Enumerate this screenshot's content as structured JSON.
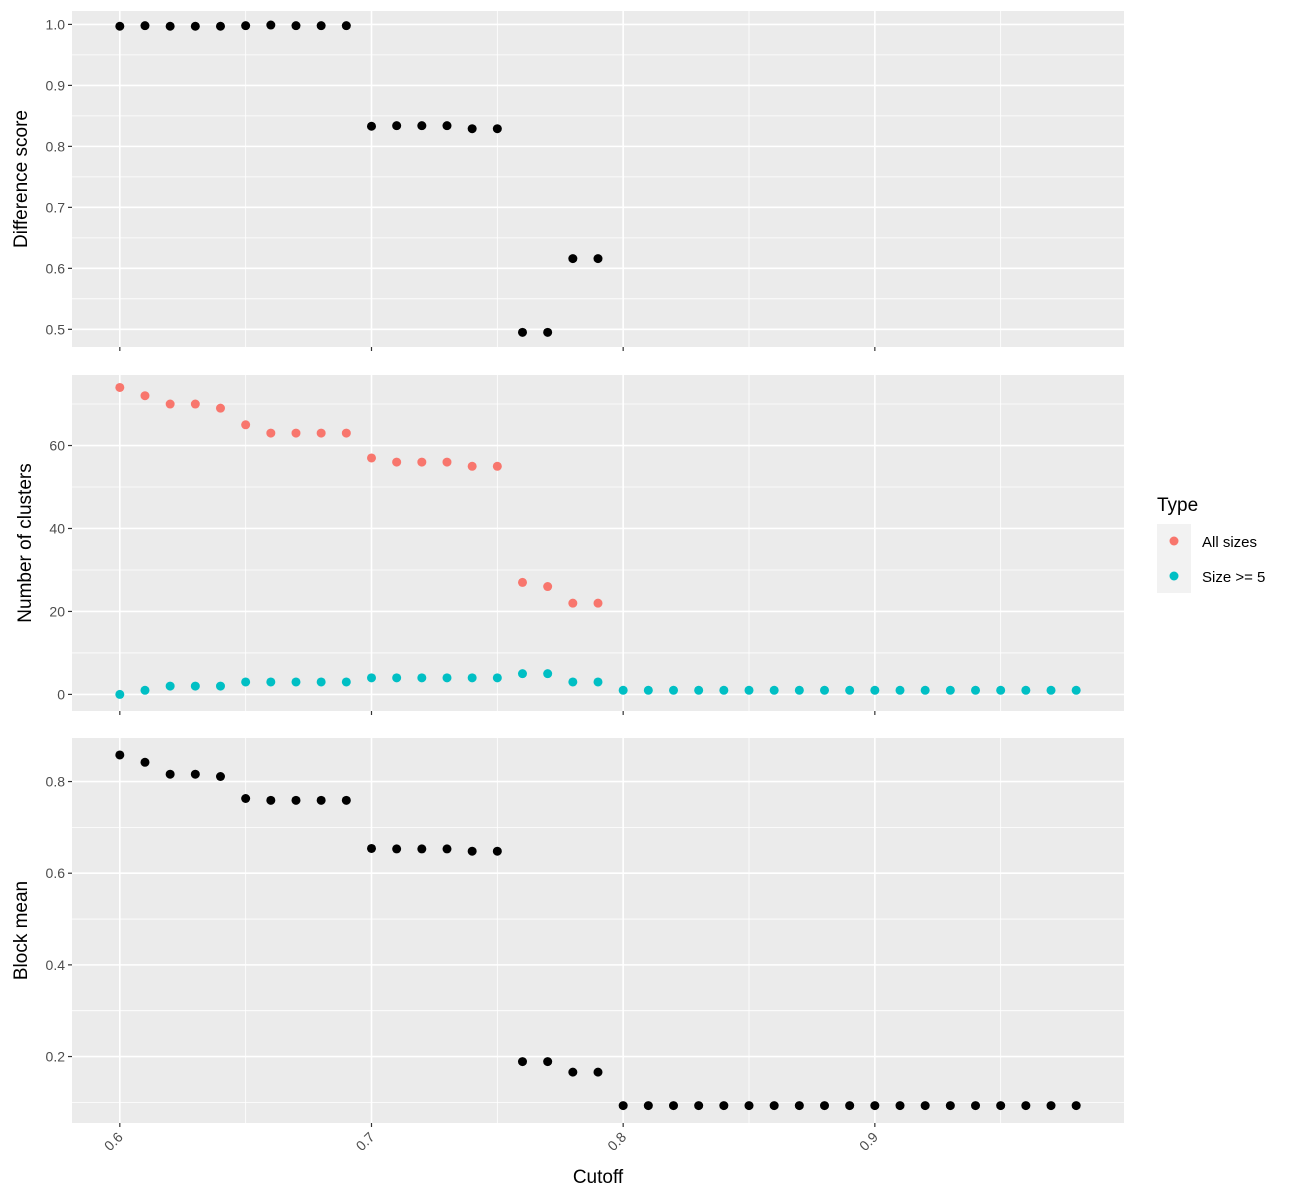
{
  "chart_data": {
    "type": "scatter",
    "layout": "faceted-vertical",
    "shared_x_label": "Cutoff",
    "x_ticks": [
      0.6,
      0.7,
      0.8,
      0.9
    ],
    "x_tick_labels": [
      "0.6",
      "0.7",
      "0.8",
      "0.9"
    ],
    "xlim": [
      0.581,
      0.999
    ],
    "grid": true,
    "colors": {
      "panel_background": "#ebebeb",
      "grid": "#ffffff",
      "point_default": "#000000",
      "tick_mark": "#333333"
    },
    "legend": {
      "title": "Type",
      "placement": "right",
      "entries": [
        {
          "label": "All sizes",
          "color": "#f8766d"
        },
        {
          "label": "Size >= 5",
          "color": "#00bfc4"
        }
      ]
    },
    "panels": [
      {
        "ylabel": "Difference score",
        "ylim": [
          0.471,
          1.022
        ],
        "y_ticks": [
          0.5,
          0.6,
          0.7,
          0.8,
          0.9,
          1.0
        ],
        "y_tick_labels": [
          "0.5",
          "0.6",
          "0.7",
          "0.8",
          "0.9",
          "1.0"
        ],
        "series": [
          {
            "color": "#000000",
            "x": [
              0.6,
              0.61,
              0.62,
              0.63,
              0.64,
              0.65,
              0.66,
              0.67,
              0.68,
              0.69,
              0.7,
              0.71,
              0.72,
              0.73,
              0.74,
              0.75,
              0.76,
              0.77,
              0.78,
              0.79
            ],
            "y": [
              0.997,
              0.998,
              0.997,
              0.997,
              0.997,
              0.998,
              0.999,
              0.998,
              0.998,
              0.998,
              0.833,
              0.834,
              0.834,
              0.834,
              0.829,
              0.829,
              0.495,
              0.495,
              0.616,
              0.616
            ]
          }
        ]
      },
      {
        "ylabel": "Number of clusters",
        "ylim": [
          -4,
          77
        ],
        "y_ticks": [
          0,
          20,
          40,
          60
        ],
        "y_tick_labels": [
          "0",
          "20",
          "40",
          "60"
        ],
        "series": [
          {
            "name": "All sizes",
            "color": "#f8766d",
            "x": [
              0.6,
              0.61,
              0.62,
              0.63,
              0.64,
              0.65,
              0.66,
              0.67,
              0.68,
              0.69,
              0.7,
              0.71,
              0.72,
              0.73,
              0.74,
              0.75,
              0.76,
              0.77,
              0.78,
              0.79
            ],
            "y": [
              74,
              72,
              70,
              70,
              69,
              65,
              63,
              63,
              63,
              63,
              57,
              56,
              56,
              56,
              55,
              55,
              27,
              26,
              22,
              22
            ]
          },
          {
            "name": "Size >= 5",
            "color": "#00bfc4",
            "x": [
              0.6,
              0.61,
              0.62,
              0.63,
              0.64,
              0.65,
              0.66,
              0.67,
              0.68,
              0.69,
              0.7,
              0.71,
              0.72,
              0.73,
              0.74,
              0.75,
              0.76,
              0.77,
              0.78,
              0.79,
              0.8,
              0.81,
              0.82,
              0.83,
              0.84,
              0.85,
              0.86,
              0.87,
              0.88,
              0.89,
              0.9,
              0.91,
              0.92,
              0.93,
              0.94,
              0.95,
              0.96,
              0.97,
              0.98
            ],
            "y": [
              0,
              1,
              2,
              2,
              2,
              3,
              3,
              3,
              3,
              3,
              4,
              4,
              4,
              4,
              4,
              4,
              5,
              5,
              3,
              3,
              1,
              1,
              1,
              1,
              1,
              1,
              1,
              1,
              1,
              1,
              1,
              1,
              1,
              1,
              1,
              1,
              1,
              1,
              1
            ]
          }
        ]
      },
      {
        "ylabel": "Block mean",
        "ylim": [
          0.055,
          0.895
        ],
        "y_ticks": [
          0.2,
          0.4,
          0.6,
          0.8
        ],
        "y_tick_labels": [
          "0.2",
          "0.4",
          "0.6",
          "0.8"
        ],
        "series": [
          {
            "color": "#000000",
            "x": [
              0.6,
              0.61,
              0.62,
              0.63,
              0.64,
              0.65,
              0.66,
              0.67,
              0.68,
              0.69,
              0.7,
              0.71,
              0.72,
              0.73,
              0.74,
              0.75,
              0.76,
              0.77,
              0.78,
              0.79,
              0.8,
              0.81,
              0.82,
              0.83,
              0.84,
              0.85,
              0.86,
              0.87,
              0.88,
              0.89,
              0.9,
              0.91,
              0.92,
              0.93,
              0.94,
              0.95,
              0.96,
              0.97,
              0.98
            ],
            "y": [
              0.858,
              0.842,
              0.816,
              0.816,
              0.811,
              0.763,
              0.759,
              0.759,
              0.759,
              0.759,
              0.654,
              0.653,
              0.653,
              0.653,
              0.648,
              0.648,
              0.189,
              0.189,
              0.166,
              0.166,
              0.093,
              0.093,
              0.093,
              0.093,
              0.093,
              0.093,
              0.093,
              0.093,
              0.093,
              0.093,
              0.093,
              0.093,
              0.093,
              0.093,
              0.093,
              0.093,
              0.093,
              0.093,
              0.093
            ]
          }
        ]
      }
    ]
  }
}
